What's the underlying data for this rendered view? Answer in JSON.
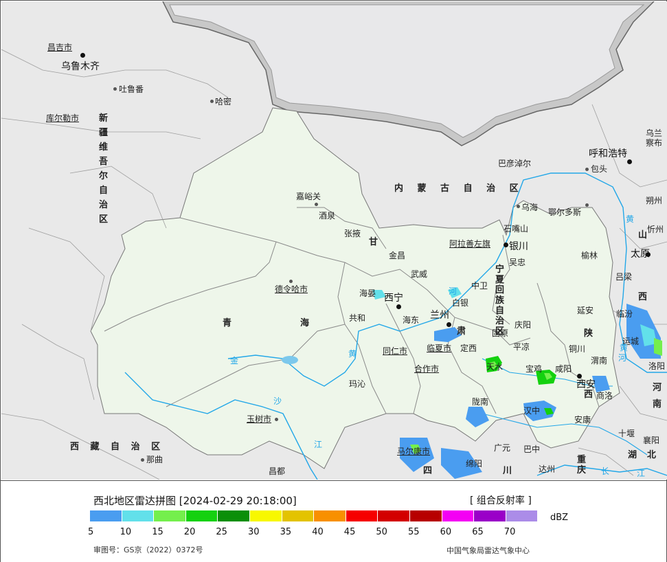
{
  "map": {
    "cities": [
      {
        "name": "昌吉市",
        "underline": true
      },
      {
        "name": "乌鲁木齐",
        "capital": true
      },
      {
        "name": "吐鲁番"
      },
      {
        "name": "哈密"
      },
      {
        "name": "库尔勒市",
        "underline": true
      },
      {
        "name": "呼和浩特",
        "capital": true
      },
      {
        "name": "巴彦淖尔"
      },
      {
        "name": "包头"
      },
      {
        "name": "乌兰察布"
      },
      {
        "name": "嘉峪关"
      },
      {
        "name": "酒泉"
      },
      {
        "name": "张掖"
      },
      {
        "name": "乌海"
      },
      {
        "name": "鄂尔多斯"
      },
      {
        "name": "朔州"
      },
      {
        "name": "忻州"
      },
      {
        "name": "石嘴山"
      },
      {
        "name": "阿拉善左旗",
        "underline": true
      },
      {
        "name": "银川",
        "capital": true
      },
      {
        "name": "金昌"
      },
      {
        "name": "吴忠"
      },
      {
        "name": "榆林"
      },
      {
        "name": "太原",
        "capital": true
      },
      {
        "name": "武威"
      },
      {
        "name": "吕梁"
      },
      {
        "name": "中卫"
      },
      {
        "name": "德令哈市",
        "underline": true
      },
      {
        "name": "海晏"
      },
      {
        "name": "西宁",
        "capital": true
      },
      {
        "name": "白银"
      },
      {
        "name": "延安"
      },
      {
        "name": "临汾"
      },
      {
        "name": "共和"
      },
      {
        "name": "海东"
      },
      {
        "name": "兰州",
        "capital": true
      },
      {
        "name": "庆阳"
      },
      {
        "name": "固原"
      },
      {
        "name": "运城"
      },
      {
        "name": "同仁市",
        "underline": true
      },
      {
        "name": "临夏市",
        "underline": true
      },
      {
        "name": "定西"
      },
      {
        "name": "平凉"
      },
      {
        "name": "铜川"
      },
      {
        "name": "渭南"
      },
      {
        "name": "合作市",
        "underline": true
      },
      {
        "name": "天水"
      },
      {
        "name": "宝鸡"
      },
      {
        "name": "咸阳"
      },
      {
        "name": "西安",
        "capital": true
      },
      {
        "name": "洛阳"
      },
      {
        "name": "玛沁"
      },
      {
        "name": "陇南"
      },
      {
        "name": "汉中"
      },
      {
        "name": "商洛"
      },
      {
        "name": "玉树市",
        "underline": true
      },
      {
        "name": "安康"
      },
      {
        "name": "十堰"
      },
      {
        "name": "马尔康市",
        "underline": true
      },
      {
        "name": "广元"
      },
      {
        "name": "巴中"
      },
      {
        "name": "襄阳"
      },
      {
        "name": "那曲"
      },
      {
        "name": "昌都"
      },
      {
        "name": "绵阳"
      },
      {
        "name": "达州"
      }
    ],
    "regions": [
      {
        "name": "新疆维吾尔自治区"
      },
      {
        "name": "内 蒙 古 自 治 区"
      },
      {
        "name": "甘"
      },
      {
        "name": "宁夏回族自治区"
      },
      {
        "name": "青"
      },
      {
        "name": "海"
      },
      {
        "name": "陕"
      },
      {
        "name": "西"
      },
      {
        "name": "西 藏 自 治 区"
      },
      {
        "name": "山"
      },
      {
        "name": "西"
      },
      {
        "name": "河"
      },
      {
        "name": "南"
      },
      {
        "name": "湖"
      },
      {
        "name": "北"
      },
      {
        "name": "川"
      },
      {
        "name": "重庆"
      },
      {
        "name": "四"
      },
      {
        "name": "肃"
      }
    ],
    "rivers": [
      {
        "name": "河"
      },
      {
        "name": "黄"
      },
      {
        "name": "黄"
      },
      {
        "name": "金"
      },
      {
        "name": "沙"
      },
      {
        "name": "江"
      },
      {
        "name": "长"
      },
      {
        "name": "江"
      },
      {
        "name": "黄"
      },
      {
        "name": "河"
      }
    ],
    "colors": {
      "land": "#e9e9e9",
      "northwest_region": "#eef5e9",
      "neighbor_country": "#c4c4c4",
      "border": "#888888",
      "river": "#22a7e8"
    }
  },
  "legend": {
    "title": "西北地区雷达拼图 [2024-02-29 20:18:00]",
    "product": "[ 组合反射率 ]",
    "unit": "dBZ",
    "ticks": [
      "5",
      "10",
      "15",
      "20",
      "25",
      "30",
      "35",
      "40",
      "45",
      "50",
      "55",
      "60",
      "65",
      "70"
    ],
    "colors": [
      "#4a9df0",
      "#62e0ea",
      "#74ef4c",
      "#14d10f",
      "#0b8f09",
      "#f8f800",
      "#e3c300",
      "#f89000",
      "#f60000",
      "#d30000",
      "#b70000",
      "#f400f4",
      "#9a00c8",
      "#ab8ce8"
    ],
    "approval": "审图号：GS京（2022）0372号",
    "center": "中国气象局雷达气象中心"
  }
}
